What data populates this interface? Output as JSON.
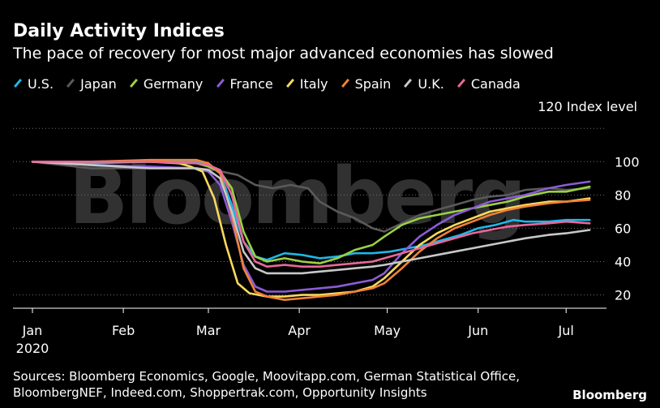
{
  "title": "Daily Activity Indices",
  "subtitle": "The pace of recovery for most major advanced economies has slowed",
  "unit_label": "120 Index level",
  "watermark": "Bloomberg",
  "brand": "Bloomberg",
  "footer": {
    "line1": "Sources: Bloomberg Economics, Google, Moovitapp.com, German Statistical Office,",
    "line2": "BloombergNEF, Indeed.com, Shoppertrak.com, Opportunity Insights"
  },
  "chart_data": {
    "type": "line",
    "title": "Daily Activity Indices",
    "ylabel": "Index level",
    "ylim": [
      12,
      124
    ],
    "yticks": [
      20,
      40,
      60,
      80,
      100
    ],
    "xlim": [
      0,
      193
    ],
    "xticks": [
      {
        "x": 0,
        "label": "Jan"
      },
      {
        "x": 31,
        "label": "Feb"
      },
      {
        "x": 60,
        "label": "Mar"
      },
      {
        "x": 91,
        "label": "Apr"
      },
      {
        "x": 121,
        "label": "May"
      },
      {
        "x": 152,
        "label": "Jun"
      },
      {
        "x": 182,
        "label": "Jul"
      }
    ],
    "year_label": "2020",
    "series": [
      {
        "name": "U.S.",
        "color": "#1fb6e8",
        "points": [
          [
            0,
            100
          ],
          [
            20,
            99
          ],
          [
            40,
            100
          ],
          [
            56,
            100
          ],
          [
            60,
            98
          ],
          [
            64,
            93
          ],
          [
            68,
            74
          ],
          [
            72,
            52
          ],
          [
            76,
            43
          ],
          [
            80,
            41
          ],
          [
            86,
            45
          ],
          [
            92,
            44
          ],
          [
            98,
            42
          ],
          [
            104,
            43
          ],
          [
            110,
            45
          ],
          [
            116,
            45
          ],
          [
            122,
            46
          ],
          [
            128,
            48
          ],
          [
            134,
            50
          ],
          [
            140,
            53
          ],
          [
            146,
            56
          ],
          [
            152,
            60
          ],
          [
            158,
            62
          ],
          [
            164,
            65
          ],
          [
            168,
            64
          ],
          [
            176,
            64
          ],
          [
            182,
            65
          ],
          [
            190,
            65
          ]
        ]
      },
      {
        "name": "Japan",
        "color": "#5a5a5a",
        "points": [
          [
            0,
            100
          ],
          [
            20,
            96
          ],
          [
            40,
            96
          ],
          [
            56,
            96
          ],
          [
            62,
            95
          ],
          [
            70,
            92
          ],
          [
            76,
            86
          ],
          [
            82,
            84
          ],
          [
            88,
            86
          ],
          [
            94,
            84
          ],
          [
            98,
            76
          ],
          [
            104,
            70
          ],
          [
            110,
            66
          ],
          [
            116,
            60
          ],
          [
            120,
            58
          ],
          [
            126,
            63
          ],
          [
            132,
            68
          ],
          [
            138,
            71
          ],
          [
            144,
            74
          ],
          [
            150,
            77
          ],
          [
            156,
            79
          ],
          [
            162,
            80
          ],
          [
            168,
            83
          ],
          [
            176,
            84
          ],
          [
            182,
            83
          ],
          [
            190,
            84
          ]
        ]
      },
      {
        "name": "Germany",
        "color": "#9ad144",
        "points": [
          [
            0,
            100
          ],
          [
            20,
            100
          ],
          [
            40,
            100
          ],
          [
            56,
            99
          ],
          [
            60,
            97
          ],
          [
            64,
            94
          ],
          [
            68,
            84
          ],
          [
            72,
            58
          ],
          [
            76,
            43
          ],
          [
            80,
            40
          ],
          [
            86,
            42
          ],
          [
            92,
            40
          ],
          [
            98,
            39
          ],
          [
            104,
            42
          ],
          [
            110,
            47
          ],
          [
            116,
            50
          ],
          [
            120,
            55
          ],
          [
            126,
            62
          ],
          [
            132,
            66
          ],
          [
            138,
            68
          ],
          [
            144,
            70
          ],
          [
            150,
            72
          ],
          [
            156,
            74
          ],
          [
            162,
            76
          ],
          [
            168,
            79
          ],
          [
            176,
            82
          ],
          [
            182,
            82
          ],
          [
            190,
            85
          ]
        ]
      },
      {
        "name": "France",
        "color": "#8b5cd6",
        "points": [
          [
            0,
            100
          ],
          [
            20,
            98
          ],
          [
            40,
            97
          ],
          [
            56,
            96
          ],
          [
            60,
            94
          ],
          [
            64,
            86
          ],
          [
            68,
            64
          ],
          [
            72,
            38
          ],
          [
            76,
            25
          ],
          [
            80,
            22
          ],
          [
            86,
            22
          ],
          [
            92,
            23
          ],
          [
            98,
            24
          ],
          [
            104,
            25
          ],
          [
            110,
            27
          ],
          [
            116,
            29
          ],
          [
            120,
            33
          ],
          [
            126,
            45
          ],
          [
            132,
            55
          ],
          [
            138,
            62
          ],
          [
            144,
            68
          ],
          [
            150,
            72
          ],
          [
            156,
            76
          ],
          [
            162,
            78
          ],
          [
            168,
            80
          ],
          [
            176,
            84
          ],
          [
            182,
            86
          ],
          [
            190,
            88
          ]
        ]
      },
      {
        "name": "Italy",
        "color": "#f9d85e",
        "points": [
          [
            0,
            100
          ],
          [
            20,
            100
          ],
          [
            40,
            100
          ],
          [
            50,
            99
          ],
          [
            54,
            97
          ],
          [
            58,
            94
          ],
          [
            62,
            78
          ],
          [
            66,
            50
          ],
          [
            70,
            27
          ],
          [
            74,
            21
          ],
          [
            80,
            19
          ],
          [
            86,
            19
          ],
          [
            92,
            20
          ],
          [
            98,
            20
          ],
          [
            104,
            21
          ],
          [
            110,
            22
          ],
          [
            116,
            25
          ],
          [
            120,
            30
          ],
          [
            126,
            40
          ],
          [
            132,
            50
          ],
          [
            138,
            57
          ],
          [
            144,
            62
          ],
          [
            150,
            66
          ],
          [
            156,
            70
          ],
          [
            162,
            72
          ],
          [
            168,
            74
          ],
          [
            176,
            76
          ],
          [
            182,
            76
          ],
          [
            190,
            78
          ]
        ]
      },
      {
        "name": "Spain",
        "color": "#f08238",
        "points": [
          [
            0,
            100
          ],
          [
            20,
            100
          ],
          [
            40,
            101
          ],
          [
            56,
            101
          ],
          [
            60,
            99
          ],
          [
            64,
            93
          ],
          [
            68,
            68
          ],
          [
            72,
            36
          ],
          [
            76,
            22
          ],
          [
            80,
            19
          ],
          [
            86,
            17
          ],
          [
            92,
            18
          ],
          [
            98,
            19
          ],
          [
            104,
            20
          ],
          [
            110,
            22
          ],
          [
            116,
            24
          ],
          [
            120,
            27
          ],
          [
            126,
            36
          ],
          [
            132,
            46
          ],
          [
            138,
            54
          ],
          [
            144,
            60
          ],
          [
            150,
            64
          ],
          [
            156,
            68
          ],
          [
            162,
            71
          ],
          [
            168,
            73
          ],
          [
            176,
            75
          ],
          [
            182,
            76
          ],
          [
            190,
            77
          ]
        ]
      },
      {
        "name": "U.K.",
        "color": "#c8c8c8",
        "points": [
          [
            0,
            100
          ],
          [
            20,
            98
          ],
          [
            40,
            96
          ],
          [
            56,
            96
          ],
          [
            60,
            95
          ],
          [
            64,
            90
          ],
          [
            68,
            70
          ],
          [
            72,
            46
          ],
          [
            76,
            36
          ],
          [
            80,
            33
          ],
          [
            86,
            33
          ],
          [
            92,
            33
          ],
          [
            98,
            34
          ],
          [
            104,
            35
          ],
          [
            110,
            36
          ],
          [
            116,
            37
          ],
          [
            120,
            38
          ],
          [
            126,
            40
          ],
          [
            132,
            42
          ],
          [
            138,
            44
          ],
          [
            144,
            46
          ],
          [
            150,
            48
          ],
          [
            156,
            50
          ],
          [
            162,
            52
          ],
          [
            168,
            54
          ],
          [
            176,
            56
          ],
          [
            182,
            57
          ],
          [
            190,
            59
          ]
        ]
      },
      {
        "name": "Canada",
        "color": "#e8689a",
        "points": [
          [
            0,
            100
          ],
          [
            20,
            100
          ],
          [
            40,
            100
          ],
          [
            56,
            99
          ],
          [
            60,
            98
          ],
          [
            64,
            95
          ],
          [
            68,
            80
          ],
          [
            72,
            52
          ],
          [
            76,
            40
          ],
          [
            80,
            37
          ],
          [
            86,
            38
          ],
          [
            92,
            37
          ],
          [
            98,
            37
          ],
          [
            104,
            38
          ],
          [
            110,
            39
          ],
          [
            116,
            40
          ],
          [
            120,
            42
          ],
          [
            126,
            45
          ],
          [
            132,
            48
          ],
          [
            138,
            51
          ],
          [
            144,
            54
          ],
          [
            150,
            57
          ],
          [
            156,
            59
          ],
          [
            162,
            61
          ],
          [
            168,
            62
          ],
          [
            176,
            63
          ],
          [
            182,
            64
          ],
          [
            190,
            63
          ]
        ]
      }
    ]
  }
}
